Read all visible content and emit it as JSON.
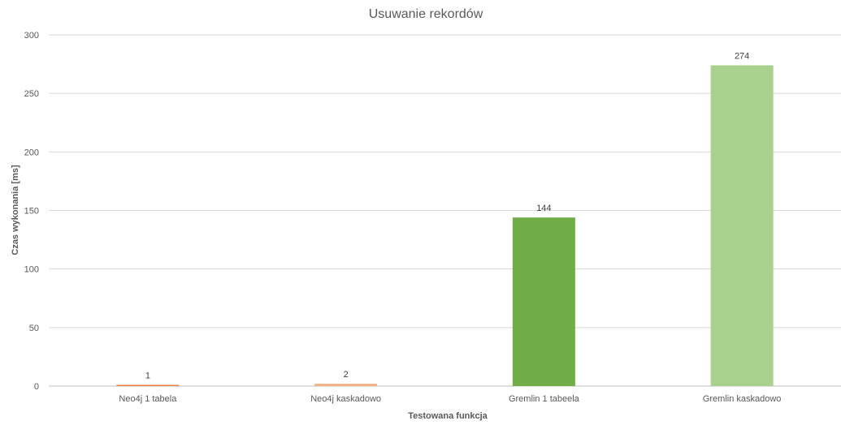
{
  "chart_data": {
    "type": "bar",
    "title": "Usuwanie rekordów",
    "xlabel": "Testowana funkcja",
    "ylabel": "Czas wykonania [ms]",
    "ylim": [
      0,
      300
    ],
    "yticks": [
      0,
      50,
      100,
      150,
      200,
      250,
      300
    ],
    "grid": true,
    "legend": "none",
    "categories": [
      "Neo4j  1 tabela",
      "Neo4j kaskadowo",
      "Gremlin 1 tabeela",
      "Gremlin kaskadowo"
    ],
    "values": [
      1,
      2,
      144,
      274
    ],
    "data_labels": [
      "1",
      "2",
      "144",
      "274"
    ],
    "bar_colors": [
      "#ed7d31",
      "#f4b183",
      "#70ad47",
      "#a9d18e"
    ]
  }
}
